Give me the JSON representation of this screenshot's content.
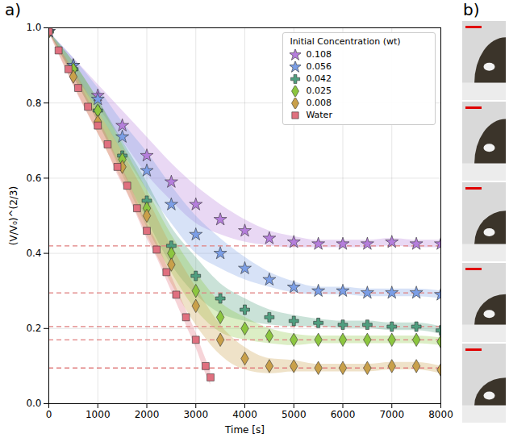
{
  "chart_data": {
    "type": "scatter",
    "panel_labels": [
      "a)",
      "b)"
    ],
    "x_label": "Time [s]",
    "y_label": "(V/V₀)^(2/3)",
    "xlim": [
      0,
      8000
    ],
    "xticks": [
      0,
      1000,
      2000,
      3000,
      4000,
      5000,
      6000,
      7000,
      8000
    ],
    "ylim": [
      0,
      1.0
    ],
    "yticks": [
      {
        "value": 0,
        "label": "0.0"
      },
      0.2,
      0.4,
      0.6,
      0.8,
      {
        "value": 1,
        "label": "1.0"
      }
    ],
    "grid": true,
    "legend": "upper right",
    "legend_title": "Initial Concentration (wt)",
    "series": [
      {
        "name": "0.108",
        "color": "#b57edc",
        "marker": "star",
        "x": [
          0,
          500,
          1000,
          1500,
          2000,
          2500,
          3000,
          3500,
          4000,
          4500,
          5000,
          5500,
          6000,
          6500,
          7000,
          7500,
          8000
        ],
        "values": [
          0.99,
          0.9,
          0.82,
          0.74,
          0.66,
          0.59,
          0.53,
          0.49,
          0.46,
          0.44,
          0.43,
          0.425,
          0.425,
          0.425,
          0.43,
          0.425,
          0.425
        ],
        "spread": [
          0,
          0.02,
          0.03,
          0.04,
          0.05,
          0.05,
          0.05,
          0.04,
          0.03,
          0.02,
          0.015,
          0.01,
          0.01,
          0.01,
          0.01,
          0.01,
          0.01
        ]
      },
      {
        "name": "0.056",
        "color": "#7b9ee6",
        "marker": "star",
        "x": [
          0,
          500,
          1000,
          1500,
          2000,
          2500,
          3000,
          3500,
          4000,
          4500,
          5000,
          5500,
          6000,
          6500,
          7000,
          7500,
          8000
        ],
        "values": [
          0.99,
          0.9,
          0.81,
          0.71,
          0.62,
          0.53,
          0.45,
          0.4,
          0.36,
          0.33,
          0.31,
          0.3,
          0.3,
          0.295,
          0.295,
          0.295,
          0.29
        ],
        "spread": [
          0,
          0.02,
          0.03,
          0.04,
          0.05,
          0.05,
          0.05,
          0.04,
          0.03,
          0.02,
          0.015,
          0.01,
          0.01,
          0.01,
          0.01,
          0.01,
          0.01
        ]
      },
      {
        "name": "0.042",
        "color": "#4f9e7f",
        "marker": "cross",
        "x": [
          0,
          500,
          1000,
          1500,
          2000,
          2500,
          3000,
          3500,
          4000,
          4500,
          5000,
          5500,
          6000,
          6500,
          7000,
          7500,
          8000
        ],
        "values": [
          0.99,
          0.89,
          0.78,
          0.66,
          0.54,
          0.42,
          0.34,
          0.28,
          0.25,
          0.23,
          0.22,
          0.215,
          0.21,
          0.21,
          0.205,
          0.205,
          0.195
        ],
        "spread": [
          0,
          0.02,
          0.03,
          0.04,
          0.05,
          0.05,
          0.05,
          0.04,
          0.03,
          0.02,
          0.015,
          0.01,
          0.01,
          0.01,
          0.01,
          0.01,
          0.01
        ]
      },
      {
        "name": "0.025",
        "color": "#8cc63f",
        "marker": "diamond",
        "x": [
          0,
          500,
          1000,
          1500,
          2000,
          2500,
          3000,
          3500,
          4000,
          4500,
          5000,
          5500,
          6000,
          6500,
          7000,
          7500,
          8000
        ],
        "values": [
          0.99,
          0.89,
          0.78,
          0.65,
          0.52,
          0.4,
          0.3,
          0.23,
          0.2,
          0.18,
          0.17,
          0.17,
          0.17,
          0.17,
          0.17,
          0.17,
          0.165
        ],
        "spread": [
          0,
          0.02,
          0.03,
          0.04,
          0.05,
          0.05,
          0.05,
          0.04,
          0.03,
          0.02,
          0.015,
          0.01,
          0.01,
          0.01,
          0.01,
          0.01,
          0.01
        ]
      },
      {
        "name": "0.008",
        "color": "#c9a04a",
        "marker": "diamond",
        "x": [
          0,
          500,
          1000,
          1500,
          2000,
          2500,
          3000,
          3500,
          4000,
          4500,
          5000,
          5500,
          6000,
          6500,
          7000,
          7500,
          8000
        ],
        "values": [
          0.99,
          0.87,
          0.75,
          0.63,
          0.5,
          0.37,
          0.26,
          0.17,
          0.12,
          0.1,
          0.1,
          0.095,
          0.095,
          0.095,
          0.1,
          0.1,
          0.09
        ],
        "spread": [
          0,
          0.02,
          0.03,
          0.04,
          0.05,
          0.05,
          0.05,
          0.04,
          0.03,
          0.02,
          0.015,
          0.01,
          0.01,
          0.01,
          0.01,
          0.01,
          0.01
        ]
      },
      {
        "name": "Water",
        "color": "#e0707f",
        "marker": "square",
        "x": [
          0,
          200,
          400,
          600,
          800,
          1000,
          1200,
          1400,
          1600,
          1800,
          2000,
          2200,
          2400,
          2600,
          2800,
          3000,
          3200,
          3300
        ],
        "values": [
          0.99,
          0.94,
          0.89,
          0.84,
          0.79,
          0.74,
          0.69,
          0.63,
          0.58,
          0.52,
          0.46,
          0.41,
          0.35,
          0.29,
          0.23,
          0.17,
          0.1,
          0.07
        ],
        "spread": [
          0,
          0.01,
          0.015,
          0.02,
          0.02,
          0.02,
          0.02,
          0.02,
          0.02,
          0.02,
          0.02,
          0.02,
          0.02,
          0.02,
          0.02,
          0.02,
          0.02,
          0.02
        ]
      }
    ],
    "reference_lines": {
      "values": [
        0.42,
        0.295,
        0.205,
        0.17,
        0.095
      ],
      "color": "#e08080",
      "line_style": "dashed"
    }
  }
}
